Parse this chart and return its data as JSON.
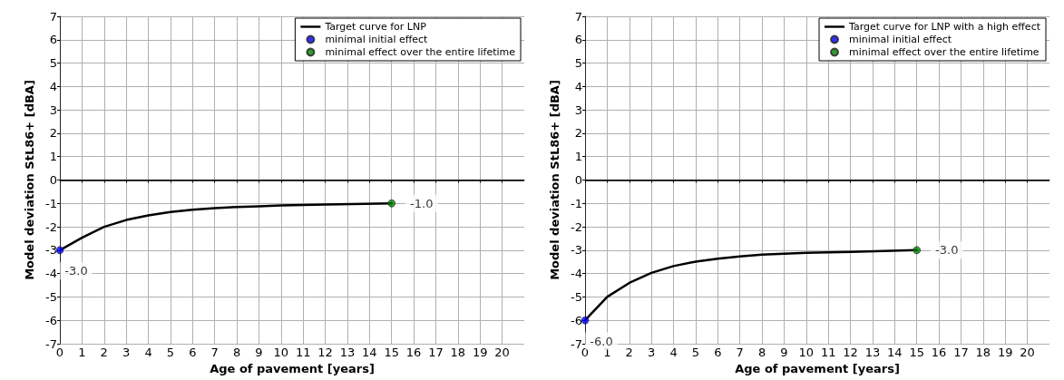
{
  "chart_data": [
    {
      "type": "line",
      "xlabel": "Age of pavement [years]",
      "ylabel": "Model deviation StL86+ [dBA]",
      "xlim": [
        0,
        21
      ],
      "xticks": [
        0,
        1,
        2,
        3,
        4,
        5,
        6,
        7,
        8,
        9,
        10,
        11,
        12,
        13,
        14,
        15,
        16,
        17,
        18,
        19,
        20
      ],
      "ylim": [
        -7,
        7
      ],
      "yticks": [
        -7,
        -6,
        -5,
        -4,
        -3,
        -2,
        -1,
        0,
        1,
        2,
        3,
        4,
        5,
        6,
        7
      ],
      "grid": true,
      "legend": "top right",
      "ref_lines": [
        {
          "axis": "y",
          "value": 0,
          "color": "#000000"
        }
      ],
      "series": [
        {
          "name": "Target curve for LNP",
          "type": "line",
          "color": "#000000",
          "marker": "none",
          "x": [
            0,
            1,
            2,
            3,
            4,
            5,
            6,
            7,
            8,
            9,
            10,
            12,
            15
          ],
          "values": [
            -3.0,
            -2.47,
            -2.0,
            -1.71,
            -1.51,
            -1.37,
            -1.27,
            -1.2,
            -1.15,
            -1.12,
            -1.09,
            -1.05,
            -1.0
          ]
        },
        {
          "name": "minimal initial effect",
          "type": "scatter",
          "color": "#0000ff",
          "marker": "circle",
          "x": [
            0
          ],
          "values": [
            -3.0
          ],
          "value_labels": [
            "-3.0"
          ]
        },
        {
          "name": "minimal effect over the entire lifetime",
          "type": "scatter",
          "color": "#008000",
          "marker": "circle",
          "x": [
            15
          ],
          "values": [
            -1.0
          ],
          "value_labels": [
            "-1.0"
          ]
        }
      ]
    },
    {
      "type": "line",
      "xlabel": "Age of pavement [years]",
      "ylabel": "Model deviation StL86+ [dBA]",
      "xlim": [
        0,
        21
      ],
      "xticks": [
        0,
        1,
        2,
        3,
        4,
        5,
        6,
        7,
        8,
        9,
        10,
        11,
        12,
        13,
        14,
        15,
        16,
        17,
        18,
        19,
        20
      ],
      "ylim": [
        -7,
        7
      ],
      "yticks": [
        -7,
        -6,
        -5,
        -4,
        -3,
        -2,
        -1,
        0,
        1,
        2,
        3,
        4,
        5,
        6,
        7
      ],
      "grid": true,
      "legend": "top right",
      "ref_lines": [
        {
          "axis": "y",
          "value": 0,
          "color": "#000000"
        }
      ],
      "series": [
        {
          "name": "Target curve for LNP with a high effect",
          "type": "line",
          "color": "#000000",
          "marker": "none",
          "x": [
            0,
            1,
            2,
            3,
            4,
            5,
            6,
            7,
            8,
            9,
            10,
            12,
            15
          ],
          "values": [
            -6.0,
            -5.0,
            -4.4,
            -3.97,
            -3.68,
            -3.49,
            -3.36,
            -3.27,
            -3.19,
            -3.15,
            -3.11,
            -3.07,
            -3.0
          ]
        },
        {
          "name": "minimal initial effect",
          "type": "scatter",
          "color": "#0000ff",
          "marker": "circle",
          "x": [
            0
          ],
          "values": [
            -6.0
          ],
          "value_labels": [
            "-6.0"
          ]
        },
        {
          "name": "minimal effect over the entire lifetime",
          "type": "scatter",
          "color": "#008000",
          "marker": "circle",
          "x": [
            15
          ],
          "values": [
            -3.0
          ],
          "value_labels": [
            "-3.0"
          ]
        }
      ]
    }
  ]
}
